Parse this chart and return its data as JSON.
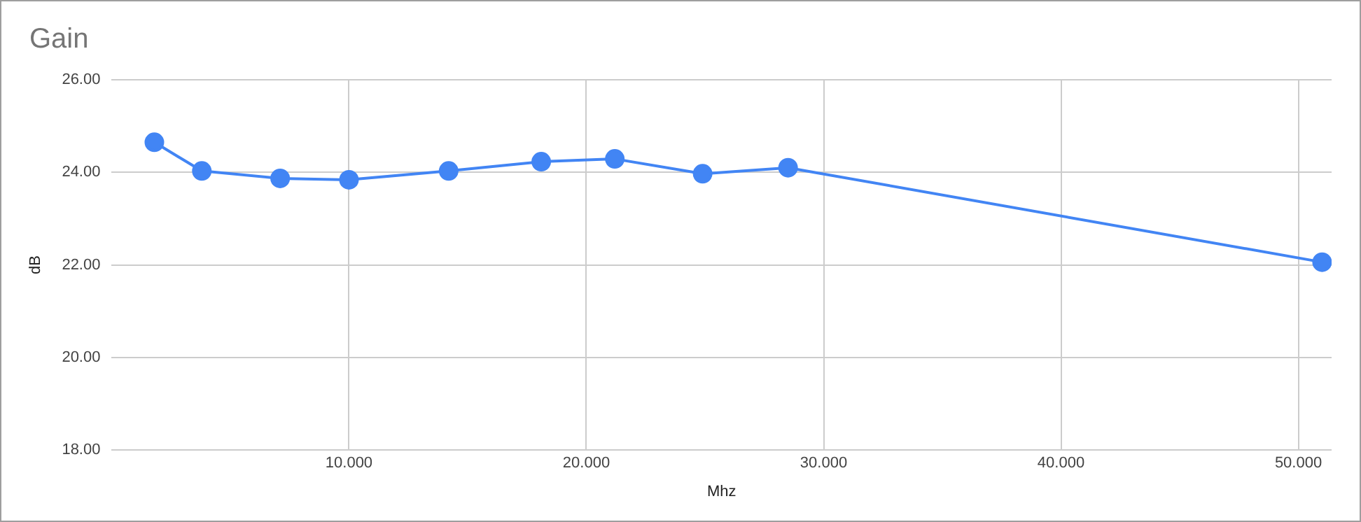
{
  "chart_data": {
    "type": "line",
    "title": "Gain",
    "xlabel": "Mhz",
    "ylabel": "dB",
    "x": [
      1.8,
      3.8,
      7.1,
      10.0,
      14.2,
      18.1,
      21.2,
      24.9,
      28.5,
      51.0
    ],
    "series": [
      {
        "color": "#4285f4",
        "values": [
          24.65,
          24.03,
          23.87,
          23.84,
          24.03,
          24.23,
          24.29,
          23.97,
          24.1,
          22.06
        ]
      }
    ],
    "xlim": [
      0,
      51.4
    ],
    "xticks": [
      {
        "value": 10,
        "label": "10.000"
      },
      {
        "value": 20,
        "label": "20.000"
      },
      {
        "value": 30,
        "label": "30.000"
      },
      {
        "value": 40,
        "label": "40.000"
      },
      {
        "value": 50,
        "label": "50.000"
      }
    ],
    "ylim": [
      18,
      26
    ],
    "yticks": [
      {
        "value": 18,
        "label": "18.00"
      },
      {
        "value": 20,
        "label": "20.00"
      },
      {
        "value": 22,
        "label": "22.00"
      },
      {
        "value": 24,
        "label": "24.00"
      },
      {
        "value": 26,
        "label": "26.00"
      }
    ],
    "grid": true,
    "legend": false,
    "marker": "circle",
    "line_style": "solid"
  }
}
